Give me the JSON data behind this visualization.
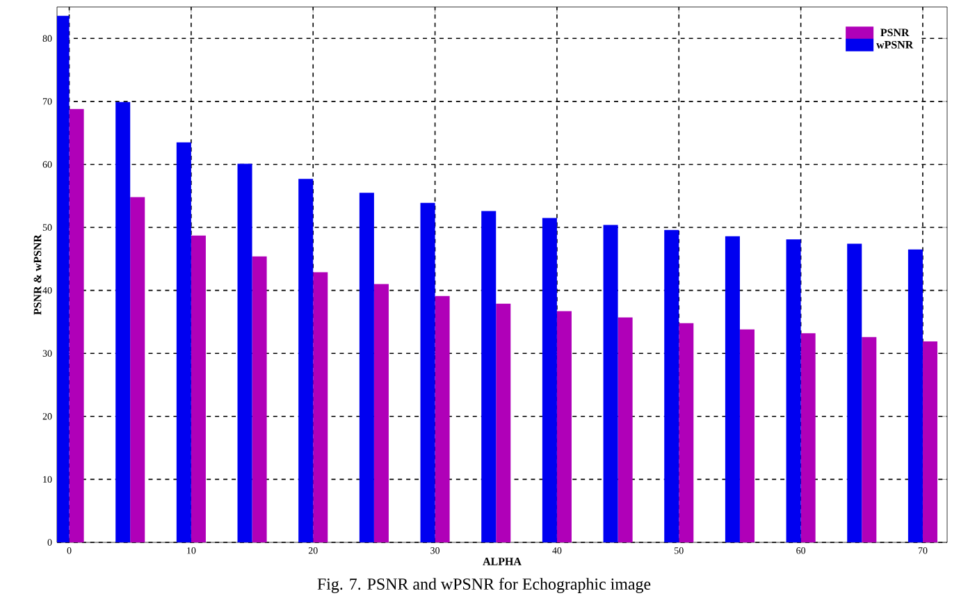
{
  "chart_data": {
    "type": "bar",
    "xlabel": "ALPHA",
    "ylabel": "PSNR & wPSNR",
    "annotations": [
      "Fig. 7. PSNR and wPSNR for Echographic image"
    ],
    "x": [
      0,
      5,
      10,
      15,
      20,
      25,
      30,
      35,
      40,
      45,
      50,
      55,
      60,
      65,
      70
    ],
    "series": [
      {
        "name": "PSNR",
        "color": "#b000b8",
        "values": [
          68.8,
          54.8,
          48.7,
          45.4,
          42.9,
          41.0,
          39.1,
          37.9,
          36.7,
          35.7,
          34.8,
          33.8,
          33.2,
          32.6,
          31.9
        ]
      },
      {
        "name": "wPSNR",
        "color": "#0000f0",
        "values": [
          83.6,
          69.9,
          63.5,
          60.1,
          57.7,
          55.5,
          53.9,
          52.6,
          51.5,
          50.4,
          49.6,
          48.6,
          48.1,
          47.4,
          46.5
        ]
      }
    ],
    "xlim": [
      -1,
      72
    ],
    "ylim": [
      0,
      85
    ],
    "xticks": [
      0,
      10,
      20,
      30,
      40,
      50,
      60,
      70
    ],
    "yticks": [
      0,
      10,
      20,
      30,
      40,
      50,
      60,
      70,
      80
    ],
    "grid": true,
    "legend": "top right"
  }
}
